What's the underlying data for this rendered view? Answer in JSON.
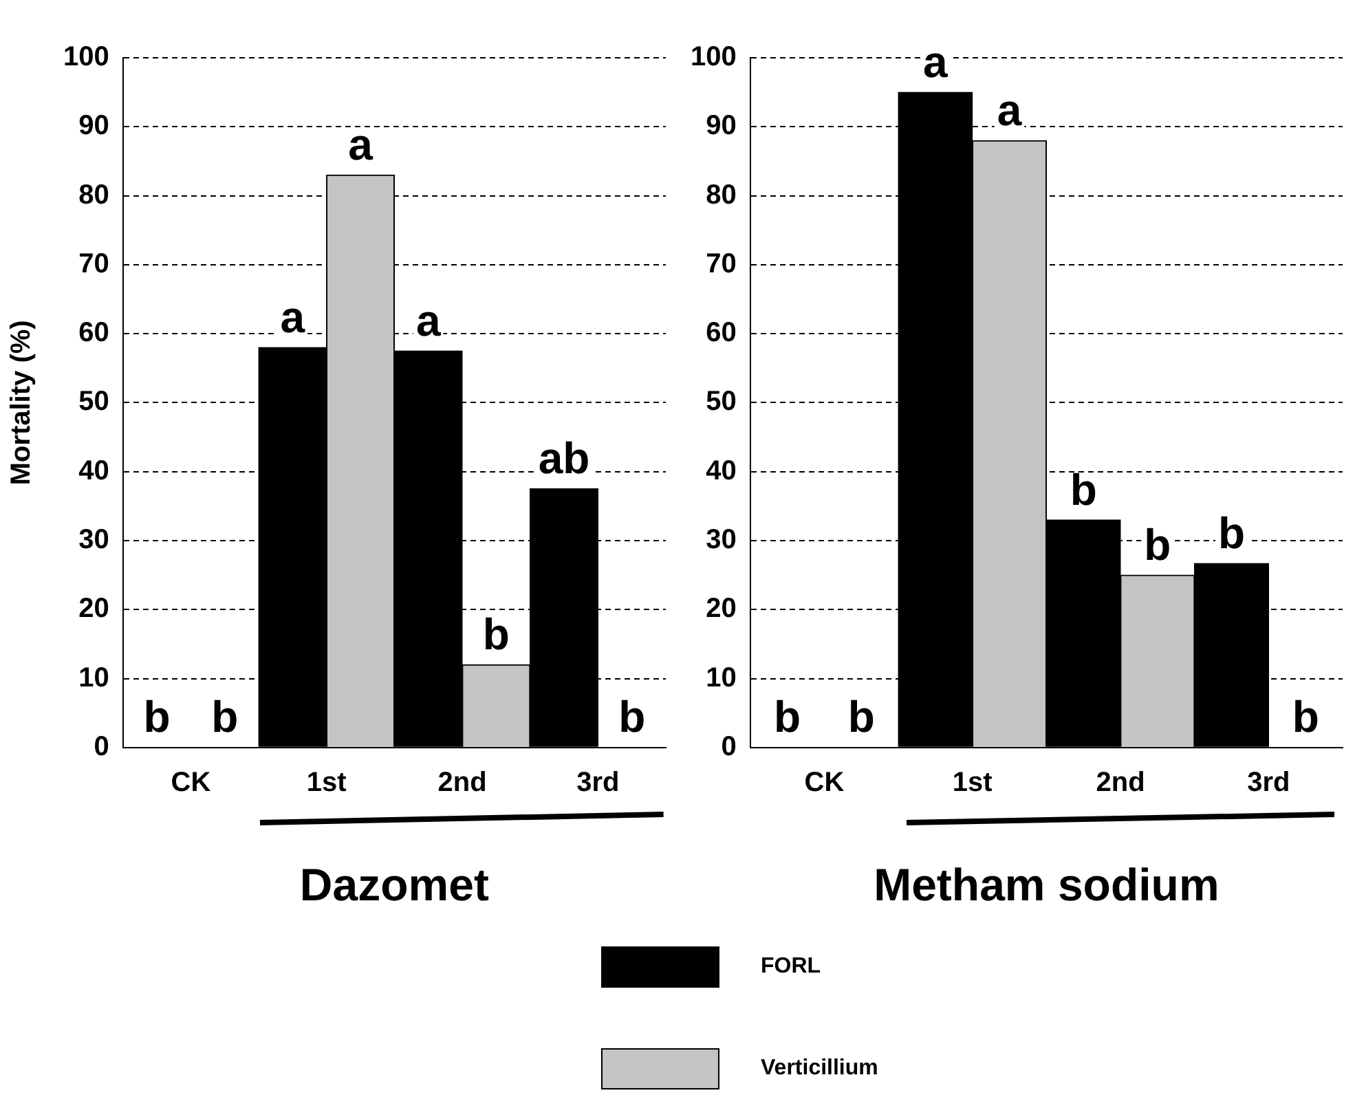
{
  "chart_data": [
    {
      "type": "bar",
      "xlabel": "Dazomet",
      "ylabel": "Mortality (%)",
      "categories": [
        "CK",
        "1st",
        "2nd",
        "3rd"
      ],
      "ylim": [
        0,
        100
      ],
      "yticks": [
        0,
        10,
        20,
        30,
        40,
        50,
        60,
        70,
        80,
        90,
        100
      ],
      "grid": "y",
      "legend": "bottom",
      "series": [
        {
          "name": "FORL",
          "color": "#000000",
          "values": [
            0,
            58,
            57.5,
            37.5
          ],
          "value_labels": [
            "b",
            "a",
            "a",
            "ab"
          ]
        },
        {
          "name": "Verticillium",
          "color": "#c4c4c4",
          "values": [
            0,
            83,
            12,
            0
          ],
          "value_labels": [
            "b",
            "a",
            "b",
            "b"
          ]
        }
      ]
    },
    {
      "type": "bar",
      "xlabel": "Metham sodium",
      "categories": [
        "CK",
        "1st",
        "2nd",
        "3rd"
      ],
      "ylim": [
        0,
        100
      ],
      "yticks": [
        0,
        10,
        20,
        30,
        40,
        50,
        60,
        70,
        80,
        90,
        100
      ],
      "grid": "y",
      "series": [
        {
          "color": "#000000",
          "values": [
            0,
            95,
            33,
            26.7
          ],
          "value_labels": [
            "b",
            "a",
            "b",
            "b"
          ]
        },
        {
          "color": "#c4c4c4",
          "values": [
            0,
            88,
            25,
            0
          ],
          "value_labels": [
            "b",
            "a",
            "b",
            "b"
          ]
        }
      ]
    }
  ]
}
